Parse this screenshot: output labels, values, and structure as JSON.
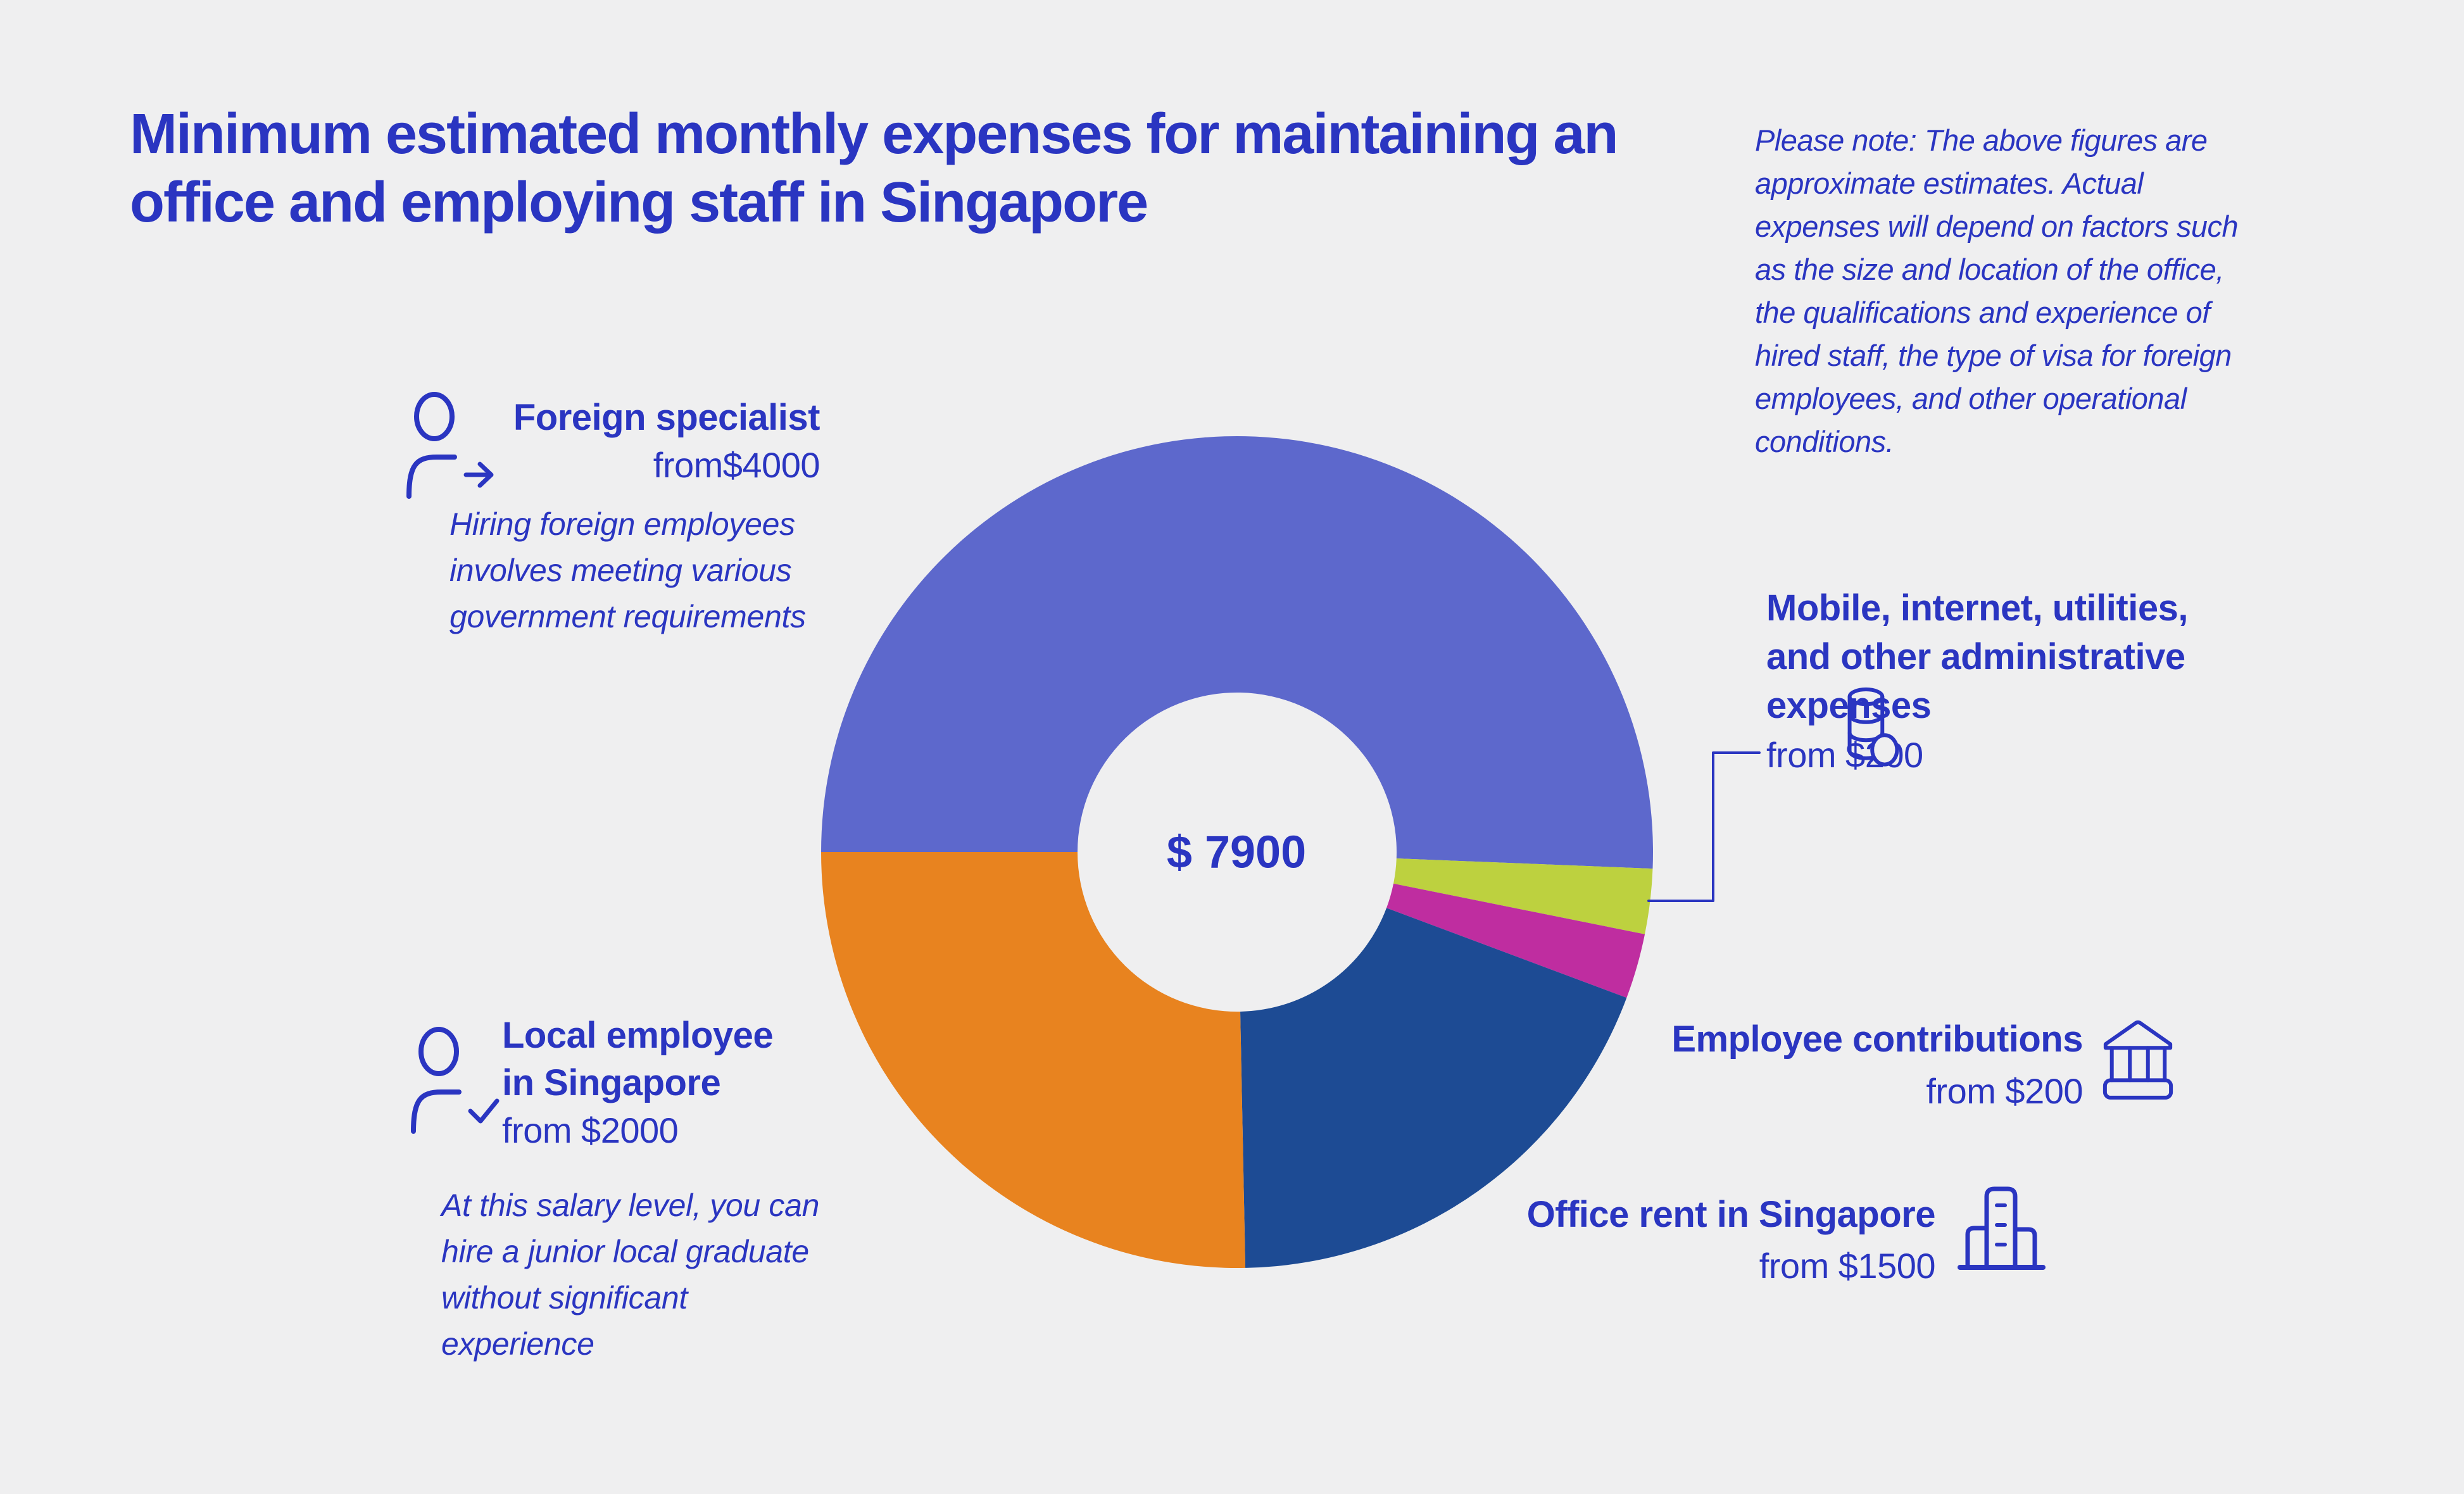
{
  "canvas": {
    "background": "#efeff0",
    "text_color": "#2a35c1"
  },
  "title": {
    "lines": [
      "Minimum estimated monthly expenses for maintaining an",
      "office and employing staff in Singapore"
    ]
  },
  "note": {
    "lines": [
      "Please note: The above figures are",
      "approximate estimates. Actual",
      "expenses will depend on factors such",
      "as the size and location of the office,",
      "the qualifications and experience of",
      "hired staff, the type of visa for foreign",
      "employees, and other operational",
      "conditions."
    ]
  },
  "chart_data": {
    "type": "pie",
    "subtype": "donut",
    "title": "Minimum estimated monthly expenses for maintaining an office and employing staff in Singapore",
    "center_label": "$ 7900",
    "total": 7900,
    "start_angle_deg": 180,
    "direction": "clockwise",
    "legend_position": "around-chart",
    "segments": [
      {
        "label": "Foreign specialist",
        "value": 4000,
        "from_label": "from$4000",
        "color": "#5d68cc"
      },
      {
        "label": "Mobile, internet, utilities, and other administrative expenses",
        "value": 200,
        "from_label": "from $200",
        "color": "#bdd13f"
      },
      {
        "label": "Employee contributions",
        "value": 200,
        "from_label": "from $200",
        "color": "#bf2da0"
      },
      {
        "label": "Office rent in Singapore",
        "value": 1500,
        "from_label": "from $1500",
        "color": "#1d4b94"
      },
      {
        "label": "Local employee in Singapore",
        "value": 2000,
        "from_label": "from $2000",
        "color": "#e8831f"
      }
    ]
  },
  "center": {
    "total_label": "$ 7900"
  },
  "callouts": {
    "foreign": {
      "title": "Foreign specialist",
      "value": "from$4000",
      "icon": "person-arrow-icon",
      "desc_lines": [
        "Hiring foreign employees",
        "involves meeting various",
        "government requirements"
      ]
    },
    "local": {
      "title_lines": [
        "Local employee",
        "in Singapore"
      ],
      "value": "from $2000",
      "icon": "person-check-icon",
      "desc_lines": [
        "At this salary level, you can",
        "hire a junior local graduate",
        "without significant",
        "experience"
      ]
    },
    "mobile": {
      "title_lines": [
        "Mobile, internet, utilities,",
        "and other administrative",
        "expenses"
      ],
      "value": "from $200",
      "icon": "coins-icon"
    },
    "contributions": {
      "title": "Employee contributions",
      "value": "from $200",
      "icon": "bank-icon"
    },
    "rent": {
      "title": "Office rent in Singapore",
      "value": "from $1500",
      "icon": "building-icon"
    }
  }
}
